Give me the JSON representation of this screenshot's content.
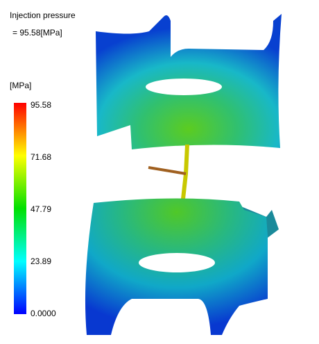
{
  "header": {
    "title": "Injection pressure",
    "value": "= 95.58[MPa]"
  },
  "legend": {
    "unit": "[MPa]",
    "ticks": [
      "95.58",
      "71.68",
      "47.79",
      "23.89",
      "0.0000"
    ]
  }
}
